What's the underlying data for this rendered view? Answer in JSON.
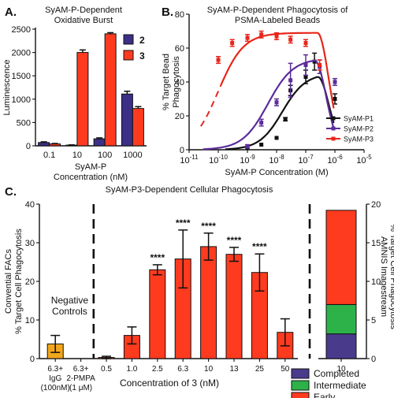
{
  "chart_data": [
    {
      "panel": "A.",
      "type": "bar",
      "title": "SyAM-P-Dependent\nOxidative Burst",
      "xlabel": "SyAM-P\nConcentration (nM)",
      "ylabel": "Luminescence",
      "ylim": [
        0,
        2500
      ],
      "yticks": [
        0,
        500,
        1000,
        1500,
        2000,
        2500
      ],
      "categories": [
        "0.1",
        "10",
        "100",
        "1000"
      ],
      "series": [
        {
          "name": "2",
          "color": "#3b2f86",
          "values": [
            70,
            15,
            150,
            1110
          ],
          "errors": [
            15,
            5,
            20,
            60
          ]
        },
        {
          "name": "3",
          "color": "#ff3b1f",
          "values": [
            40,
            2000,
            2400,
            800
          ],
          "errors": [
            10,
            55,
            25,
            40
          ]
        }
      ],
      "legend": "top-right"
    },
    {
      "panel": "B.",
      "type": "scatter",
      "title": "SyAM-P-Dependent Phagocytosis of\nPSMA-Labeled Beads",
      "xlabel": "SyAM-P Concentration (M)",
      "ylabel": "% Target Bead\nPhagocytosis",
      "xscale": "log",
      "xtick_exponents": [
        -11,
        -10,
        -9,
        -8,
        -7,
        -6,
        -5
      ],
      "ylim": [
        0,
        80
      ],
      "yticks": [
        0,
        20,
        40,
        60,
        80
      ],
      "legend": "bottom-right",
      "series": [
        {
          "name": "SyAM-P1",
          "color": "#111111",
          "points": [
            {
              "x": 1e-09,
              "y": 1
            },
            {
              "x": 3e-09,
              "y": 3
            },
            {
              "x": 1e-08,
              "y": 7
            },
            {
              "x": 2e-08,
              "y": 18
            },
            {
              "x": 3e-08,
              "y": 35
            },
            {
              "x": 1e-07,
              "y": 43
            },
            {
              "x": 2e-07,
              "y": 52
            },
            {
              "x": 1e-06,
              "y": 30
            }
          ],
          "errors": [
            0,
            0,
            0,
            1,
            3,
            4,
            5,
            3
          ],
          "curve": {
            "bottom": 0,
            "top": 45,
            "logec50": -7.8,
            "hill": 1.1,
            "decay_logx": -6.6
          }
        },
        {
          "name": "SyAM-P2",
          "color": "#5b2d9a",
          "points": [
            {
              "x": 1e-09,
              "y": 2
            },
            {
              "x": 3e-09,
              "y": 16
            },
            {
              "x": 1e-08,
              "y": 28
            },
            {
              "x": 3e-08,
              "y": 41
            },
            {
              "x": 1e-07,
              "y": 50
            },
            {
              "x": 3e-07,
              "y": 49
            },
            {
              "x": 1e-06,
              "y": 40
            }
          ],
          "errors": [
            1,
            2,
            2,
            10,
            6,
            4,
            2
          ],
          "curve": {
            "bottom": 0,
            "top": 54,
            "logec50": -8.3,
            "hill": 1.0,
            "decay_logx": -6.7
          }
        },
        {
          "name": "SyAM-P3",
          "color": "#e8261a",
          "points": [
            {
              "x": 1e-10,
              "y": 53
            },
            {
              "x": 3e-10,
              "y": 63
            },
            {
              "x": 1e-09,
              "y": 66
            },
            {
              "x": 3e-09,
              "y": 68
            },
            {
              "x": 1e-08,
              "y": 67
            },
            {
              "x": 3e-08,
              "y": 65
            },
            {
              "x": 1e-07,
              "y": 63
            },
            {
              "x": 3e-07,
              "y": 50
            }
          ],
          "errors": [
            2,
            2,
            2,
            2,
            2,
            2,
            2,
            3
          ],
          "curve": {
            "bottom": 0,
            "top": 69,
            "logec50": -10.0,
            "hill": 1.0,
            "decay_logx": -6.6,
            "dashed_until": -9.9
          }
        }
      ]
    },
    {
      "panel": "C.",
      "type": "bar",
      "title": "SyAM-P3-Dependent Cellular Phagocytosis",
      "xlabel": "Concentration of 3 (nM)",
      "ylabel_left": "Convential FACs\n% Target Cell Phagocytosis",
      "ylabel_right": "AMNIS Imagestream\n% Target Cell Phagocytosis",
      "ylim_left": [
        0,
        40
      ],
      "yticks_left": [
        0,
        10,
        20,
        30,
        40
      ],
      "ylim_right": [
        0,
        20
      ],
      "yticks_right": [
        0,
        5,
        10,
        15,
        20
      ],
      "annotation": "Negative\nControls",
      "categories": [
        "6.3+\nIgG\n(100nM)",
        "6.3+\n2-PMPA\n(1 μM)",
        "0.5",
        "1.0",
        "2.5",
        "6.3",
        "10",
        "13",
        "25",
        "50"
      ],
      "values": [
        3.8,
        0,
        0.3,
        6,
        23,
        25.8,
        29,
        27,
        22.3,
        6.8
      ],
      "errors": [
        2.2,
        0,
        0.3,
        2.2,
        1.3,
        7.5,
        3.5,
        1.8,
        4.8,
        3.5
      ],
      "bar_colors": [
        "#f2a71b",
        "#ff3b1f",
        "#ff3b1f",
        "#ff3b1f",
        "#ff3b1f",
        "#ff3b1f",
        "#ff3b1f",
        "#ff3b1f",
        "#ff3b1f",
        "#ff3b1f"
      ],
      "significance": [
        "",
        "",
        "",
        "",
        "****",
        "****",
        "****",
        "****",
        "****",
        ""
      ],
      "stacked": {
        "category": "10",
        "segments": [
          {
            "name": "Completed",
            "value": 3.2,
            "color": "#4a3a8c"
          },
          {
            "name": "Intermediate",
            "value": 3.8,
            "color": "#2db24a"
          },
          {
            "name": "Early",
            "value": 12.2,
            "color": "#ff3b1f"
          }
        ]
      },
      "legend": "bottom-right"
    }
  ]
}
